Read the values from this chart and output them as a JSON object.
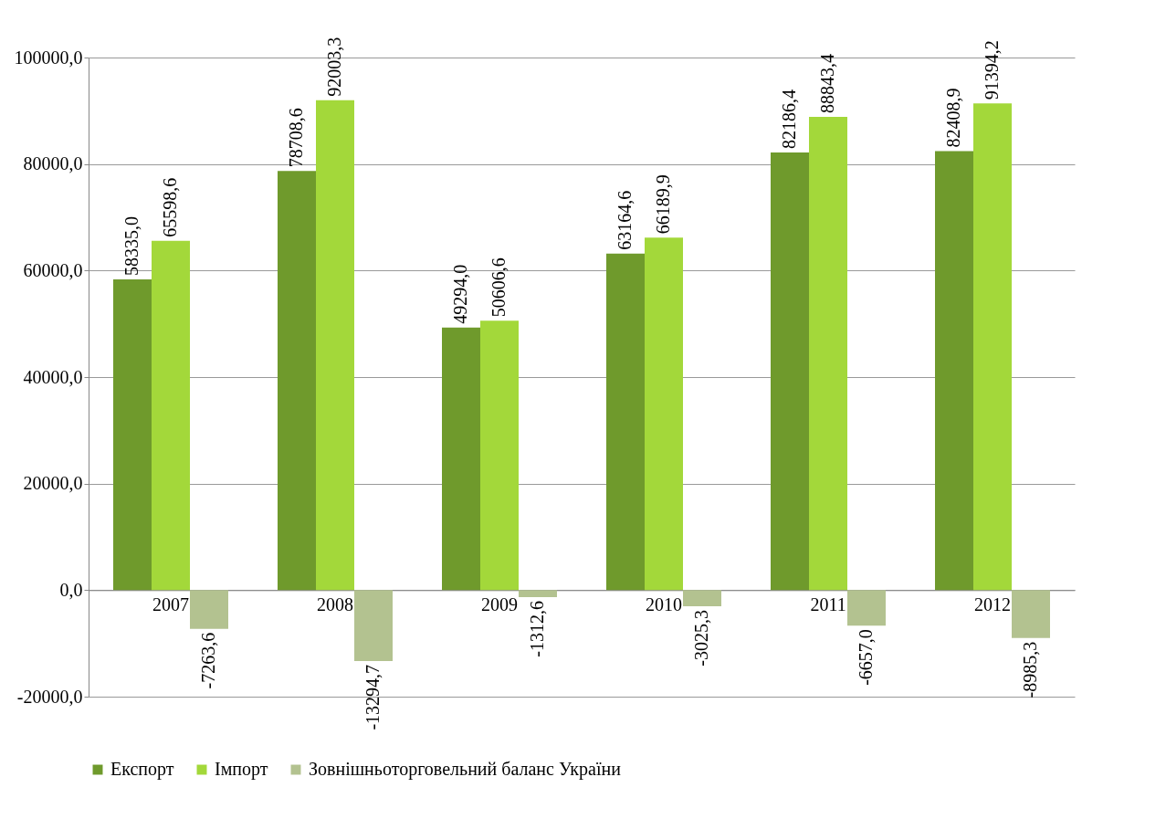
{
  "chart_data": {
    "type": "bar",
    "categories": [
      "2007",
      "2008",
      "2009",
      "2010",
      "2011",
      "2012"
    ],
    "series": [
      {
        "name": "Експорт",
        "color": "#6f9a2c",
        "values": [
          58335.0,
          78708.6,
          49294.0,
          63164.6,
          82186.4,
          82408.9
        ],
        "value_labels": [
          "58335,0",
          "78708,6",
          "49294,0",
          "63164,6",
          "82186,4",
          "82408,9"
        ]
      },
      {
        "name": "Імпорт",
        "color": "#a3d83a",
        "values": [
          65598.6,
          92003.3,
          50606.6,
          66189.9,
          88843.4,
          91394.2
        ],
        "value_labels": [
          "65598,6",
          "92003,3",
          "50606,6",
          "66189,9",
          "88843,4",
          "91394,2"
        ]
      },
      {
        "name": "Зовнішньоторговельний баланс України",
        "color": "#b3c290",
        "values": [
          -7263.6,
          -13294.7,
          -1312.6,
          -3025.3,
          -6657.0,
          -8985.3
        ],
        "value_labels": [
          "-7263,6",
          "-13294,7",
          "-1312,6",
          "-3025,3",
          "-6657,0",
          "-8985,3"
        ]
      }
    ],
    "ylim": [
      -20000,
      100000
    ],
    "yticks": [
      {
        "value": -20000,
        "label": "-20000,0"
      },
      {
        "value": 0,
        "label": "0,0"
      },
      {
        "value": 20000,
        "label": "20000,0"
      },
      {
        "value": 40000,
        "label": "40000,0"
      },
      {
        "value": 60000,
        "label": "60000,0"
      },
      {
        "value": 80000,
        "label": "80000,0"
      },
      {
        "value": 100000,
        "label": "100000,0"
      }
    ],
    "grid": "y",
    "legend": "bottom"
  }
}
